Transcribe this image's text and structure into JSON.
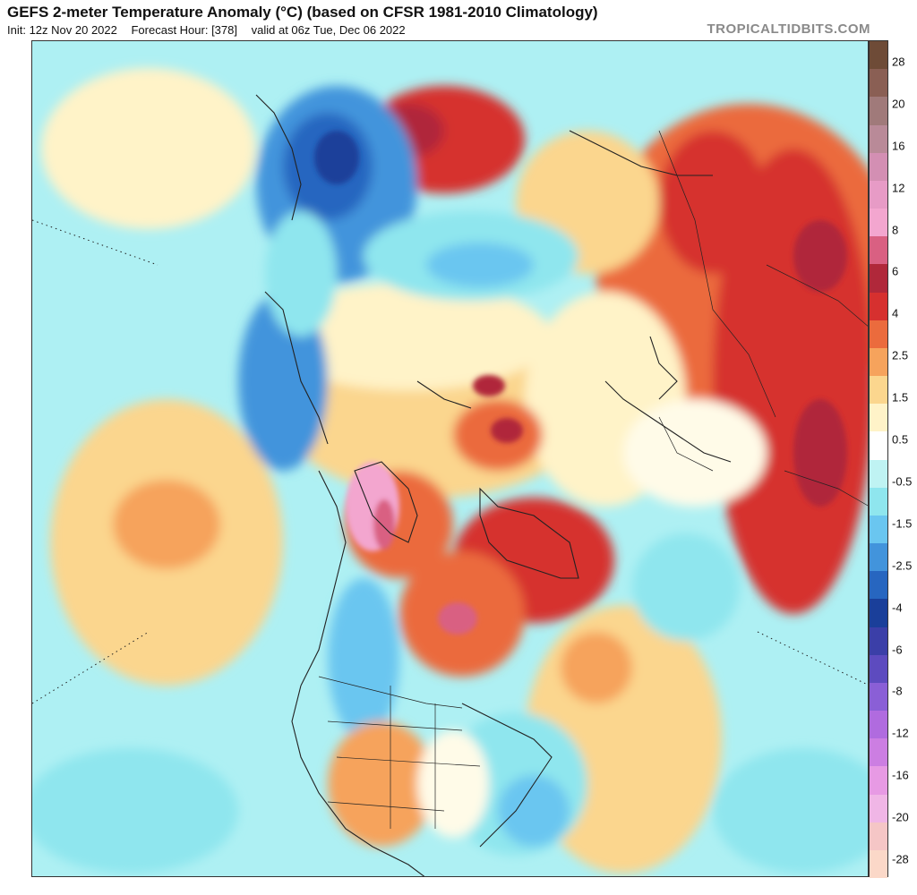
{
  "header": {
    "title": "GEFS 2-meter Temperature Anomaly (°C) (based on CFSR 1981-2010 Climatology)",
    "init": "Init: 12z Nov 20 2022",
    "forecast_hour": "Forecast Hour: [378]",
    "valid": "valid at 06z Tue, Dec 06 2022",
    "brand": "TROPICALTIDBITS.COM"
  },
  "colorbar": {
    "labels": [
      "28",
      "20",
      "16",
      "12",
      "8",
      "6",
      "4",
      "2.5",
      "1.5",
      "0.5",
      "-0.5",
      "-1.5",
      "-2.5",
      "-4",
      "-6",
      "-8",
      "-12",
      "-16",
      "-20",
      "-28"
    ],
    "colors": [
      "#6e4b37",
      "#8a5f54",
      "#a07a7a",
      "#b98a98",
      "#d38fb3",
      "#e79bc6",
      "#f3a6cf",
      "#d96082",
      "#b0283a",
      "#d6302f",
      "#eb6b3d",
      "#f6a35c",
      "#fbd68e",
      "#fff3c8",
      "#ffffff",
      "#bff3f3",
      "#8fe6ee",
      "#6ac6f0",
      "#4294dc",
      "#2766c0",
      "#1a3f9a",
      "#3b3fa8",
      "#5d4bbf",
      "#8a5fd6",
      "#b06bdf",
      "#cc7ee2",
      "#e79ae4",
      "#f0b6e6",
      "#f5c6c6",
      "#fbd8c8"
    ],
    "bar_color_top": "#6e4b37",
    "bar_color_bottom": "#fbd8c8"
  },
  "map": {
    "ocean_color": "#aef0f3",
    "neutral_color": "#fffbe8"
  }
}
